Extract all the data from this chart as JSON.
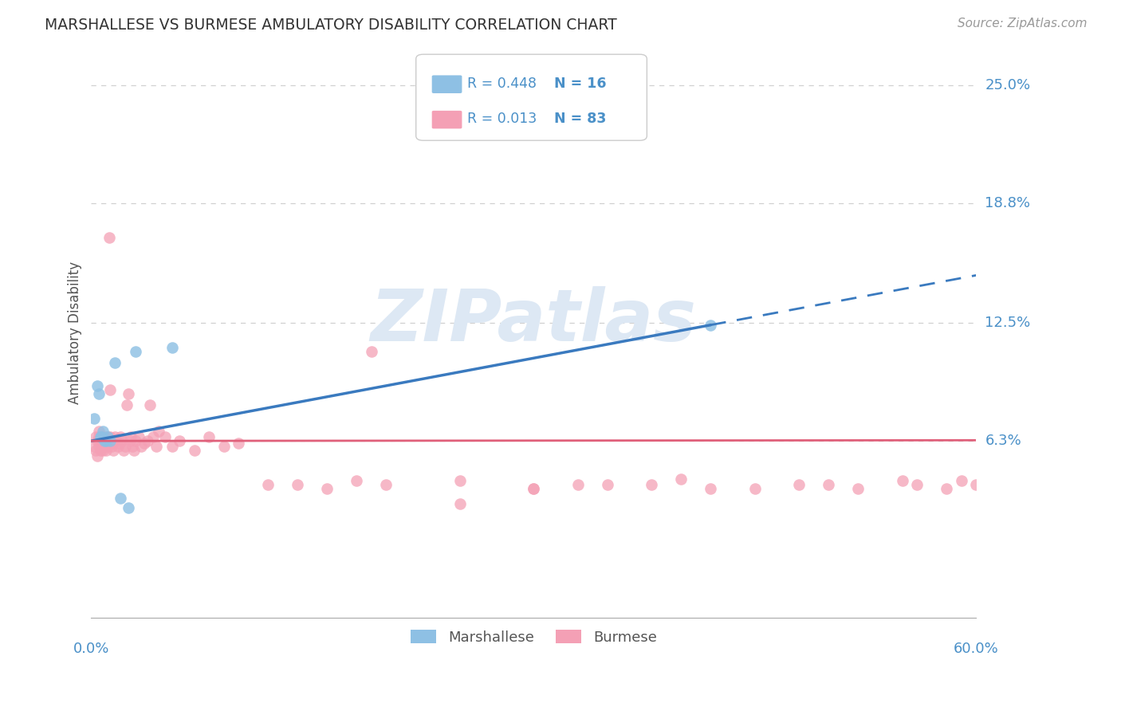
{
  "title": "MARSHALLESE VS BURMESE AMBULATORY DISABILITY CORRELATION CHART",
  "source": "Source: ZipAtlas.com",
  "ylabel": "Ambulatory Disability",
  "xlim": [
    0.0,
    0.6
  ],
  "ylim": [
    -0.03,
    0.27
  ],
  "yticks": [
    0.063,
    0.125,
    0.188,
    0.25
  ],
  "ytick_labels": [
    "6.3%",
    "12.5%",
    "18.8%",
    "25.0%"
  ],
  "marshallese_color": "#8ec0e4",
  "burmese_color": "#f4a0b5",
  "trend_blue": "#3a7abf",
  "trend_pink": "#e0607a",
  "label_blue": "#4a90c8",
  "grid_color": "#d0d0d0",
  "background_color": "#ffffff",
  "watermark": "ZIPatlas",
  "marshallese_x": [
    0.002,
    0.004,
    0.005,
    0.006,
    0.007,
    0.008,
    0.009,
    0.01,
    0.011,
    0.013,
    0.016,
    0.02,
    0.025,
    0.03,
    0.055,
    0.42
  ],
  "marshallese_y": [
    0.075,
    0.092,
    0.088,
    0.065,
    0.065,
    0.068,
    0.063,
    0.063,
    0.065,
    0.063,
    0.104,
    0.033,
    0.028,
    0.11,
    0.112,
    0.124
  ],
  "burmese_x": [
    0.002,
    0.003,
    0.003,
    0.004,
    0.004,
    0.005,
    0.005,
    0.005,
    0.006,
    0.006,
    0.007,
    0.007,
    0.008,
    0.008,
    0.008,
    0.009,
    0.009,
    0.01,
    0.01,
    0.01,
    0.011,
    0.011,
    0.012,
    0.013,
    0.013,
    0.014,
    0.014,
    0.015,
    0.016,
    0.017,
    0.018,
    0.019,
    0.02,
    0.021,
    0.022,
    0.023,
    0.024,
    0.025,
    0.026,
    0.027,
    0.028,
    0.029,
    0.03,
    0.032,
    0.034,
    0.036,
    0.038,
    0.04,
    0.042,
    0.044,
    0.046,
    0.05,
    0.055,
    0.06,
    0.07,
    0.08,
    0.09,
    0.1,
    0.12,
    0.14,
    0.16,
    0.18,
    0.2,
    0.25,
    0.3,
    0.35,
    0.4,
    0.45,
    0.5,
    0.55,
    0.58,
    0.6,
    0.25,
    0.3,
    0.33,
    0.38,
    0.42,
    0.48,
    0.52,
    0.56,
    0.59,
    0.61,
    0.19
  ],
  "burmese_y": [
    0.06,
    0.058,
    0.065,
    0.055,
    0.063,
    0.06,
    0.065,
    0.068,
    0.058,
    0.063,
    0.06,
    0.065,
    0.058,
    0.062,
    0.063,
    0.06,
    0.065,
    0.062,
    0.058,
    0.063,
    0.06,
    0.065,
    0.17,
    0.065,
    0.09,
    0.062,
    0.06,
    0.058,
    0.065,
    0.063,
    0.06,
    0.062,
    0.065,
    0.063,
    0.058,
    0.06,
    0.082,
    0.088,
    0.063,
    0.065,
    0.06,
    0.058,
    0.063,
    0.065,
    0.06,
    0.062,
    0.063,
    0.082,
    0.065,
    0.06,
    0.068,
    0.065,
    0.06,
    0.063,
    0.058,
    0.065,
    0.06,
    0.062,
    0.04,
    0.04,
    0.038,
    0.042,
    0.04,
    0.042,
    0.038,
    0.04,
    0.043,
    0.038,
    0.04,
    0.042,
    0.038,
    0.04,
    0.03,
    0.038,
    0.04,
    0.04,
    0.038,
    0.04,
    0.038,
    0.04,
    0.042,
    0.038,
    0.11
  ]
}
